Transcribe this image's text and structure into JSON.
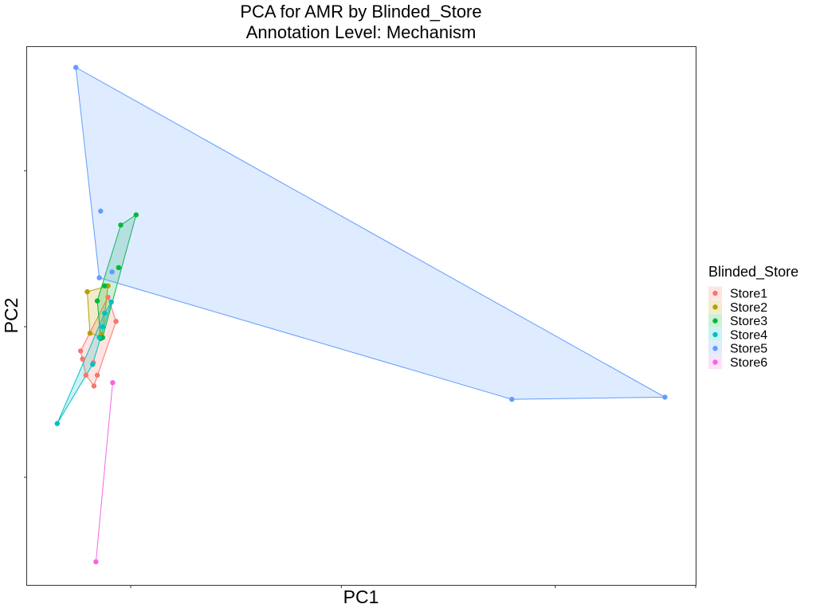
{
  "chart_data": {
    "type": "scatter",
    "title": "PCA for AMR by Blinded_Store",
    "subtitle": "Annotation Level: Mechanism",
    "xlabel": "PC1",
    "ylabel": "PC2",
    "show_tick_labels": false,
    "grid": false,
    "xlim": [
      -0.0,
      1.0
    ],
    "ylim": [
      -0.0,
      1.0
    ],
    "x_ticks": [
      0.155,
      0.47,
      0.79,
      1.0
    ],
    "y_ticks": [
      0.2,
      0.48,
      0.77
    ],
    "hulls": true,
    "legend": {
      "title": "Blinded_Store",
      "position": "right"
    },
    "series": [
      {
        "name": "Store1",
        "color": "#F8766D",
        "points": [
          [
            0.08,
            0.435
          ],
          [
            0.083,
            0.42
          ],
          [
            0.088,
            0.39
          ],
          [
            0.099,
            0.413
          ],
          [
            0.1,
            0.37
          ],
          [
            0.105,
            0.39
          ],
          [
            0.121,
            0.535
          ],
          [
            0.133,
            0.49
          ]
        ]
      },
      {
        "name": "Store2",
        "color": "#B79F00",
        "points": [
          [
            0.09,
            0.545
          ],
          [
            0.094,
            0.468
          ],
          [
            0.121,
            0.556
          ],
          [
            0.111,
            0.465
          ],
          [
            0.112,
            0.46
          ]
        ]
      },
      {
        "name": "Store3",
        "color": "#00BA38",
        "points": [
          [
            0.105,
            0.528
          ],
          [
            0.116,
            0.556
          ],
          [
            0.11,
            0.458
          ],
          [
            0.14,
            0.669
          ],
          [
            0.163,
            0.688
          ],
          [
            0.137,
            0.59
          ],
          [
            0.113,
            0.46
          ]
        ]
      },
      {
        "name": "Store4",
        "color": "#00BFC4",
        "points": [
          [
            0.045,
            0.3
          ],
          [
            0.098,
            0.41
          ],
          [
            0.108,
            0.46
          ],
          [
            0.113,
            0.48
          ],
          [
            0.116,
            0.505
          ],
          [
            0.126,
            0.526
          ]
        ]
      },
      {
        "name": "Store5",
        "color": "#619CFF",
        "points": [
          [
            0.073,
            0.962
          ],
          [
            0.11,
            0.695
          ],
          [
            0.108,
            0.571
          ],
          [
            0.127,
            0.582
          ],
          [
            0.725,
            0.345
          ],
          [
            0.954,
            0.349
          ]
        ]
      },
      {
        "name": "Store6",
        "color": "#F564E3",
        "points": [
          [
            0.128,
            0.376
          ],
          [
            0.103,
            0.043
          ]
        ]
      }
    ]
  }
}
